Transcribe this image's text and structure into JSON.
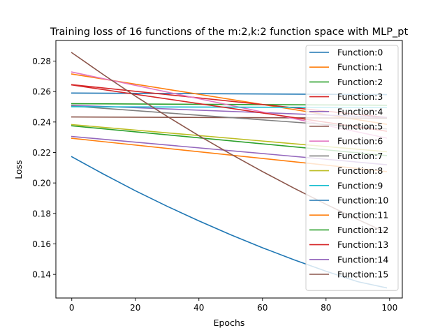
{
  "chart_data": {
    "type": "line",
    "title": "Training loss of 16 functions of the m:2,k:2 function space with MLP_pt",
    "xlabel": "Epochs",
    "ylabel": "Loss",
    "xlim": [
      -5,
      104
    ],
    "ylim": [
      0.1245,
      0.2935
    ],
    "xticks": [
      0,
      20,
      40,
      60,
      80,
      100
    ],
    "xtick_labels": [
      "0",
      "20",
      "40",
      "60",
      "80",
      "100"
    ],
    "yticks": [
      0.14,
      0.16,
      0.18,
      0.2,
      0.22,
      0.24,
      0.26,
      0.28
    ],
    "ytick_labels": [
      "0.14",
      "0.16",
      "0.18",
      "0.20",
      "0.22",
      "0.24",
      "0.26",
      "0.28"
    ],
    "grid": false,
    "legend_position": "top-right",
    "series": [
      {
        "name": "Function:0",
        "color": "#1f77b4",
        "x": [
          0,
          99
        ],
        "y": [
          0.259,
          0.258
        ]
      },
      {
        "name": "Function:1",
        "color": "#ff7f0e",
        "x": [
          0,
          99
        ],
        "y": [
          0.2715,
          0.2385
        ]
      },
      {
        "name": "Function:2",
        "color": "#2ca02c",
        "x": [
          0,
          99
        ],
        "y": [
          0.252,
          0.251
        ]
      },
      {
        "name": "Function:3",
        "color": "#d62728",
        "x": [
          0,
          99
        ],
        "y": [
          0.2645,
          0.243
        ]
      },
      {
        "name": "Function:4",
        "color": "#9467bd",
        "x": [
          0,
          99
        ],
        "y": [
          0.251,
          0.243
        ]
      },
      {
        "name": "Function:5",
        "color": "#8c564b",
        "x": [
          0,
          99
        ],
        "y": [
          0.2433,
          0.2425
        ]
      },
      {
        "name": "Function:6",
        "color": "#e377c2",
        "x": [
          0,
          99
        ],
        "y": [
          0.2728,
          0.2295
        ]
      },
      {
        "name": "Function:7",
        "color": "#7f7f7f",
        "x": [
          0,
          99
        ],
        "y": [
          0.2505,
          0.2355
        ]
      },
      {
        "name": "Function:8",
        "color": "#bcbd22",
        "x": [
          0,
          99
        ],
        "y": [
          0.2383,
          0.2205
        ]
      },
      {
        "name": "Function:9",
        "color": "#17becf",
        "x": [
          0,
          99
        ],
        "y": [
          0.25,
          0.2495
        ]
      },
      {
        "name": "Function:10",
        "color": "#1f77b4",
        "x": [
          0,
          10,
          20,
          30,
          40,
          50,
          60,
          70,
          80,
          90,
          99
        ],
        "y": [
          0.2172,
          0.2058,
          0.1949,
          0.1847,
          0.1751,
          0.166,
          0.1575,
          0.1495,
          0.1421,
          0.1352,
          0.1312
        ]
      },
      {
        "name": "Function:11",
        "color": "#ff7f0e",
        "x": [
          0,
          99
        ],
        "y": [
          0.2293,
          0.2075
        ]
      },
      {
        "name": "Function:12",
        "color": "#2ca02c",
        "x": [
          0,
          99
        ],
        "y": [
          0.2375,
          0.218
        ]
      },
      {
        "name": "Function:13",
        "color": "#d62728",
        "x": [
          0,
          99
        ],
        "y": [
          0.2643,
          0.234
        ]
      },
      {
        "name": "Function:14",
        "color": "#9467bd",
        "x": [
          0,
          99
        ],
        "y": [
          0.2305,
          0.212
        ]
      },
      {
        "name": "Function:15",
        "color": "#8c564b",
        "x": [
          0,
          10,
          20,
          30,
          40,
          50,
          60,
          70,
          80,
          90,
          99
        ],
        "y": [
          0.2855,
          0.271,
          0.257,
          0.2437,
          0.231,
          0.219,
          0.2075,
          0.1965,
          0.186,
          0.176,
          0.1675
        ]
      }
    ]
  }
}
